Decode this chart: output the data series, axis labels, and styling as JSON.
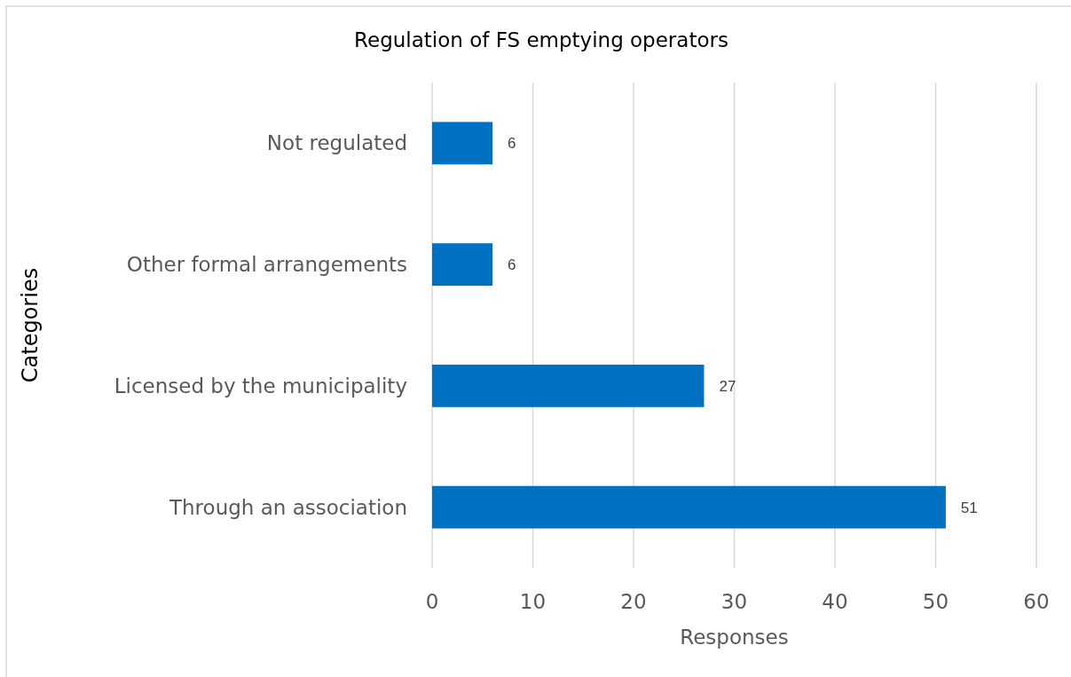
{
  "chart_data": {
    "type": "bar",
    "title": "Regulation of FS emptying operators",
    "xlabel": "Responses",
    "ylabel": "Categories",
    "orientation": "horizontal",
    "categories": [
      "Not regulated",
      "Other formal arrangements",
      "Licensed by the municipality",
      "Through an association"
    ],
    "values": [
      6,
      6,
      27,
      51
    ],
    "color": "#0070c0",
    "xlim": [
      0,
      60
    ],
    "xticks": [
      0,
      10,
      20,
      30,
      40,
      50,
      60
    ],
    "grid": "x",
    "data_labels": true
  }
}
